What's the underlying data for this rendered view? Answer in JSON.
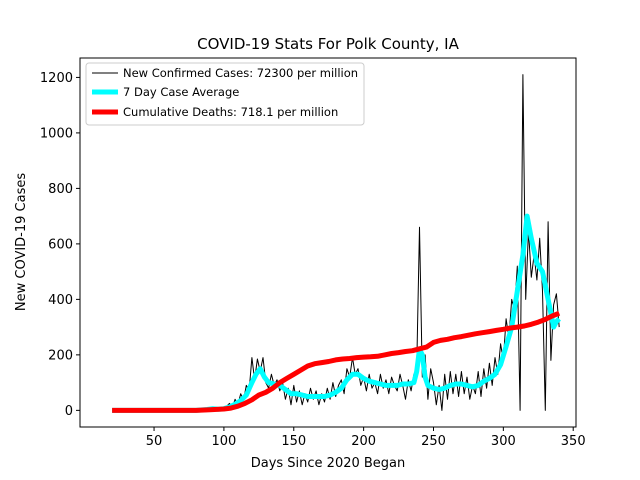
{
  "chart_data": {
    "type": "line",
    "title": "COVID-19 Stats For Polk County, IA",
    "xlabel": "Days Since 2020 Began",
    "ylabel": "New COVID-19 Cases",
    "xlim": [
      -3,
      352
    ],
    "ylim": [
      -60,
      1270
    ],
    "xticks": [
      50,
      100,
      150,
      200,
      250,
      300,
      350
    ],
    "yticks": [
      0,
      200,
      400,
      600,
      800,
      1000,
      1200
    ],
    "grid": false,
    "legend_position": "top-left",
    "series": [
      {
        "name": "New Confirmed Cases: 72300 per million",
        "color": "#000000",
        "points": [
          [
            20,
            0
          ],
          [
            30,
            0
          ],
          [
            40,
            0
          ],
          [
            50,
            0
          ],
          [
            60,
            0
          ],
          [
            70,
            0
          ],
          [
            80,
            0
          ],
          [
            85,
            0
          ],
          [
            88,
            5
          ],
          [
            90,
            10
          ],
          [
            92,
            3
          ],
          [
            94,
            12
          ],
          [
            96,
            0
          ],
          [
            98,
            8
          ],
          [
            100,
            5
          ],
          [
            102,
            15
          ],
          [
            104,
            25
          ],
          [
            106,
            10
          ],
          [
            108,
            40
          ],
          [
            110,
            20
          ],
          [
            112,
            60
          ],
          [
            114,
            35
          ],
          [
            116,
            90
          ],
          [
            118,
            70
          ],
          [
            120,
            190
          ],
          [
            122,
            110
          ],
          [
            124,
            185
          ],
          [
            126,
            140
          ],
          [
            128,
            190
          ],
          [
            130,
            100
          ],
          [
            132,
            80
          ],
          [
            134,
            130
          ],
          [
            136,
            90
          ],
          [
            138,
            110
          ],
          [
            140,
            70
          ],
          [
            142,
            100
          ],
          [
            144,
            40
          ],
          [
            146,
            80
          ],
          [
            148,
            20
          ],
          [
            150,
            90
          ],
          [
            152,
            30
          ],
          [
            154,
            70
          ],
          [
            156,
            20
          ],
          [
            158,
            60
          ],
          [
            160,
            30
          ],
          [
            162,
            80
          ],
          [
            164,
            40
          ],
          [
            166,
            70
          ],
          [
            168,
            20
          ],
          [
            170,
            60
          ],
          [
            172,
            30
          ],
          [
            174,
            80
          ],
          [
            176,
            40
          ],
          [
            178,
            100
          ],
          [
            180,
            50
          ],
          [
            182,
            90
          ],
          [
            184,
            110
          ],
          [
            186,
            60
          ],
          [
            188,
            150
          ],
          [
            190,
            120
          ],
          [
            192,
            190
          ],
          [
            194,
            130
          ],
          [
            196,
            150
          ],
          [
            198,
            90
          ],
          [
            200,
            120
          ],
          [
            202,
            70
          ],
          [
            204,
            130
          ],
          [
            206,
            80
          ],
          [
            208,
            100
          ],
          [
            210,
            60
          ],
          [
            212,
            130
          ],
          [
            214,
            80
          ],
          [
            216,
            110
          ],
          [
            218,
            60
          ],
          [
            220,
            120
          ],
          [
            222,
            90
          ],
          [
            224,
            70
          ],
          [
            226,
            130
          ],
          [
            228,
            90
          ],
          [
            230,
            40
          ],
          [
            232,
            110
          ],
          [
            234,
            70
          ],
          [
            236,
            130
          ],
          [
            238,
            150
          ],
          [
            240,
            660
          ],
          [
            242,
            120
          ],
          [
            244,
            200
          ],
          [
            246,
            40
          ],
          [
            248,
            150
          ],
          [
            250,
            100
          ],
          [
            252,
            20
          ],
          [
            254,
            90
          ],
          [
            256,
            0
          ],
          [
            258,
            130
          ],
          [
            260,
            40
          ],
          [
            262,
            140
          ],
          [
            264,
            60
          ],
          [
            266,
            130
          ],
          [
            268,
            50
          ],
          [
            270,
            140
          ],
          [
            272,
            60
          ],
          [
            274,
            120
          ],
          [
            276,
            40
          ],
          [
            278,
            90
          ],
          [
            280,
            60
          ],
          [
            282,
            140
          ],
          [
            284,
            50
          ],
          [
            286,
            150
          ],
          [
            288,
            80
          ],
          [
            290,
            170
          ],
          [
            292,
            90
          ],
          [
            294,
            190
          ],
          [
            296,
            130
          ],
          [
            298,
            240
          ],
          [
            300,
            180
          ],
          [
            302,
            330
          ],
          [
            304,
            260
          ],
          [
            306,
            400
          ],
          [
            308,
            360
          ],
          [
            310,
            520
          ],
          [
            312,
            0
          ],
          [
            314,
            1210
          ],
          [
            316,
            400
          ],
          [
            318,
            650
          ],
          [
            320,
            480
          ],
          [
            322,
            560
          ],
          [
            324,
            470
          ],
          [
            326,
            620
          ],
          [
            328,
            430
          ],
          [
            330,
            0
          ],
          [
            332,
            680
          ],
          [
            334,
            180
          ],
          [
            336,
            380
          ],
          [
            338,
            420
          ],
          [
            340,
            300
          ]
        ]
      },
      {
        "name": "7 Day Case Average",
        "color": "#00ffff",
        "points": [
          [
            20,
            0
          ],
          [
            40,
            0
          ],
          [
            60,
            0
          ],
          [
            80,
            0
          ],
          [
            88,
            3
          ],
          [
            92,
            6
          ],
          [
            96,
            4
          ],
          [
            100,
            6
          ],
          [
            104,
            12
          ],
          [
            108,
            22
          ],
          [
            112,
            35
          ],
          [
            116,
            55
          ],
          [
            120,
            100
          ],
          [
            123,
            130
          ],
          [
            126,
            150
          ],
          [
            129,
            120
          ],
          [
            132,
            100
          ],
          [
            136,
            95
          ],
          [
            140,
            90
          ],
          [
            144,
            75
          ],
          [
            148,
            60
          ],
          [
            152,
            60
          ],
          [
            156,
            55
          ],
          [
            160,
            50
          ],
          [
            164,
            50
          ],
          [
            168,
            50
          ],
          [
            172,
            50
          ],
          [
            176,
            55
          ],
          [
            180,
            65
          ],
          [
            184,
            80
          ],
          [
            188,
            110
          ],
          [
            192,
            130
          ],
          [
            196,
            130
          ],
          [
            200,
            115
          ],
          [
            204,
            105
          ],
          [
            208,
            100
          ],
          [
            212,
            95
          ],
          [
            216,
            90
          ],
          [
            220,
            90
          ],
          [
            224,
            90
          ],
          [
            228,
            95
          ],
          [
            232,
            95
          ],
          [
            236,
            100
          ],
          [
            238,
            140
          ],
          [
            240,
            220
          ],
          [
            242,
            200
          ],
          [
            244,
            120
          ],
          [
            246,
            90
          ],
          [
            250,
            80
          ],
          [
            254,
            75
          ],
          [
            258,
            80
          ],
          [
            262,
            90
          ],
          [
            266,
            95
          ],
          [
            270,
            95
          ],
          [
            274,
            90
          ],
          [
            278,
            85
          ],
          [
            282,
            90
          ],
          [
            286,
            105
          ],
          [
            290,
            115
          ],
          [
            294,
            130
          ],
          [
            298,
            165
          ],
          [
            302,
            230
          ],
          [
            306,
            300
          ],
          [
            310,
            430
          ],
          [
            314,
            560
          ],
          [
            317,
            700
          ],
          [
            320,
            620
          ],
          [
            324,
            530
          ],
          [
            328,
            500
          ],
          [
            332,
            400
          ],
          [
            334,
            350
          ],
          [
            336,
            300
          ],
          [
            338,
            320
          ],
          [
            340,
            330
          ]
        ]
      },
      {
        "name": "Cumulative Deaths: 718.1 per million",
        "color": "#ff0000",
        "points": [
          [
            20,
            0
          ],
          [
            40,
            0
          ],
          [
            60,
            0
          ],
          [
            80,
            0
          ],
          [
            90,
            2
          ],
          [
            100,
            5
          ],
          [
            105,
            8
          ],
          [
            110,
            15
          ],
          [
            115,
            25
          ],
          [
            120,
            38
          ],
          [
            125,
            55
          ],
          [
            130,
            65
          ],
          [
            135,
            80
          ],
          [
            140,
            100
          ],
          [
            145,
            115
          ],
          [
            150,
            130
          ],
          [
            155,
            145
          ],
          [
            160,
            160
          ],
          [
            165,
            168
          ],
          [
            170,
            172
          ],
          [
            175,
            176
          ],
          [
            180,
            182
          ],
          [
            185,
            185
          ],
          [
            190,
            187
          ],
          [
            195,
            190
          ],
          [
            200,
            192
          ],
          [
            205,
            193
          ],
          [
            210,
            195
          ],
          [
            215,
            200
          ],
          [
            220,
            205
          ],
          [
            225,
            208
          ],
          [
            230,
            212
          ],
          [
            235,
            215
          ],
          [
            240,
            222
          ],
          [
            245,
            228
          ],
          [
            250,
            245
          ],
          [
            255,
            252
          ],
          [
            260,
            256
          ],
          [
            265,
            262
          ],
          [
            270,
            266
          ],
          [
            275,
            271
          ],
          [
            280,
            276
          ],
          [
            285,
            280
          ],
          [
            290,
            284
          ],
          [
            295,
            288
          ],
          [
            300,
            292
          ],
          [
            305,
            297
          ],
          [
            310,
            300
          ],
          [
            315,
            304
          ],
          [
            320,
            310
          ],
          [
            325,
            318
          ],
          [
            330,
            328
          ],
          [
            335,
            340
          ],
          [
            340,
            350
          ]
        ]
      }
    ]
  }
}
